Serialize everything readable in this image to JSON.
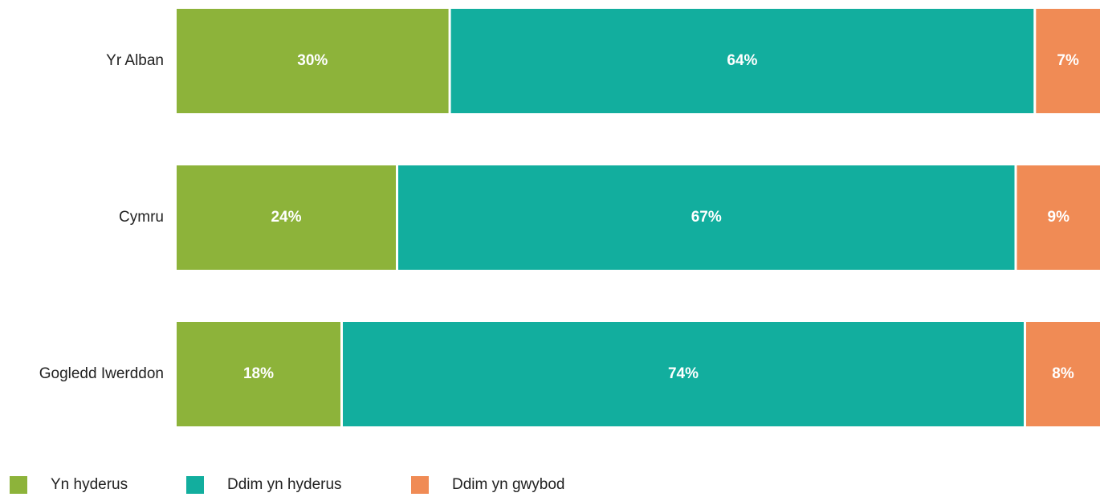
{
  "chart_data": {
    "type": "bar",
    "orientation": "horizontal",
    "stacked": true,
    "percent_stacked": true,
    "categories": [
      "Yr Alban",
      "Cymru",
      "Gogledd Iwerddon"
    ],
    "series": [
      {
        "name": "Yn hyderus",
        "values": [
          30,
          24,
          18
        ],
        "labels": [
          "30%",
          "24%",
          "18%"
        ],
        "color": "#8db33a"
      },
      {
        "name": "Ddim yn hyderus",
        "values": [
          64,
          67,
          74
        ],
        "labels": [
          "64%",
          "67%",
          "74%"
        ],
        "color": "#12ae9e"
      },
      {
        "name": "Ddim yn gwybod",
        "values": [
          7,
          9,
          8
        ],
        "labels": [
          "7%",
          "9%",
          "8%"
        ],
        "color": "#f08b55"
      }
    ],
    "title": "",
    "xlabel": "",
    "ylabel": "",
    "grid": false,
    "legend_position": "bottom-left"
  }
}
